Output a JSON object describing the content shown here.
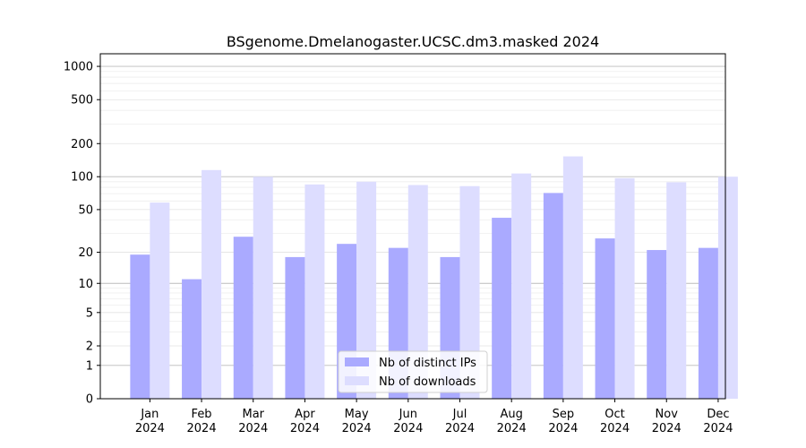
{
  "chart_data": {
    "type": "bar",
    "title": "BSgenome.Dmelanogaster.UCSC.dm3.masked 2024",
    "xlabel": "",
    "ylabel": "",
    "y_scale": "log1p",
    "y_ticks": [
      0,
      1,
      2,
      5,
      10,
      20,
      50,
      100,
      200,
      500,
      1000
    ],
    "ylim": [
      0,
      1300
    ],
    "grid": true,
    "legend_position": "bottom-center",
    "categories": [
      [
        "Jan",
        "2024"
      ],
      [
        "Feb",
        "2024"
      ],
      [
        "Mar",
        "2024"
      ],
      [
        "Apr",
        "2024"
      ],
      [
        "May",
        "2024"
      ],
      [
        "Jun",
        "2024"
      ],
      [
        "Jul",
        "2024"
      ],
      [
        "Aug",
        "2024"
      ],
      [
        "Sep",
        "2024"
      ],
      [
        "Oct",
        "2024"
      ],
      [
        "Nov",
        "2024"
      ],
      [
        "Dec",
        "2024"
      ]
    ],
    "series": [
      {
        "name": "Nb of distinct IPs",
        "color": "#aaaaff",
        "values": [
          19,
          11,
          28,
          18,
          24,
          22,
          18,
          42,
          71,
          27,
          21,
          22
        ]
      },
      {
        "name": "Nb of downloads",
        "color": "#ddddff",
        "values": [
          58,
          115,
          100,
          85,
          90,
          84,
          82,
          107,
          153,
          97,
          89,
          100
        ]
      }
    ]
  }
}
